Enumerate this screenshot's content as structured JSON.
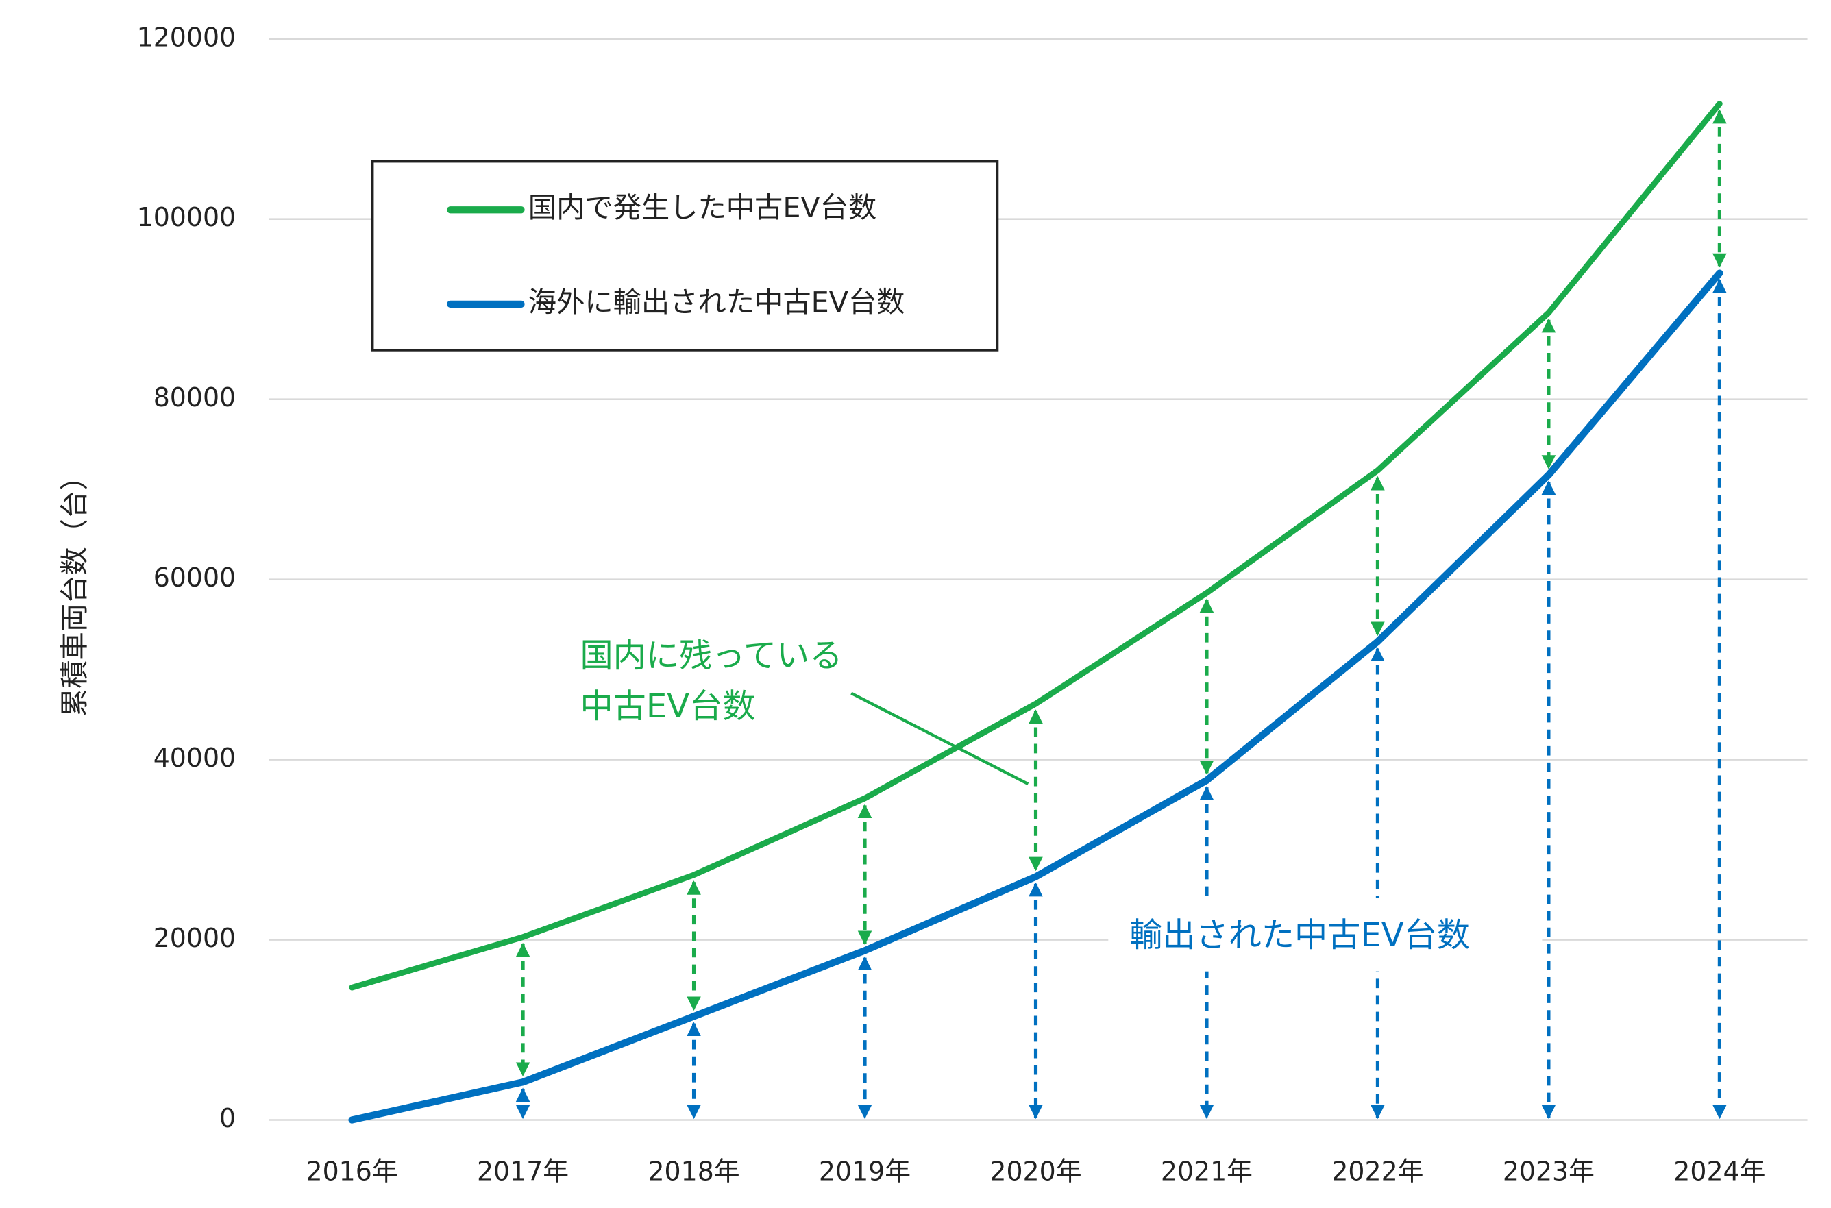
{
  "chart_data": {
    "type": "line",
    "y_label": "累積車両台数（台）",
    "categories": [
      "2016年",
      "2017年",
      "2018年",
      "2019年",
      "2020年",
      "2021年",
      "2022年",
      "2023年",
      "2024年"
    ],
    "series": [
      {
        "name": "国内で発生した中古EV台数",
        "color": "#1aab4b",
        "values": [
          14700,
          20300,
          27200,
          35700,
          46200,
          58500,
          72100,
          89600,
          112800
        ]
      },
      {
        "name": "海外に輸出された中古EV台数",
        "color": "#0070c0",
        "values": [
          0,
          4200,
          11500,
          18800,
          27000,
          37700,
          53100,
          71600,
          94000
        ]
      }
    ],
    "annotations": [
      {
        "lines": [
          "国内に残っている",
          "中古EV台数"
        ]
      },
      {
        "lines": [
          "輸出された中古EV台数"
        ]
      }
    ],
    "ylim": [
      0,
      120000
    ],
    "yticks": [
      0,
      20000,
      40000,
      60000,
      80000,
      100000,
      120000
    ],
    "grid": true
  }
}
